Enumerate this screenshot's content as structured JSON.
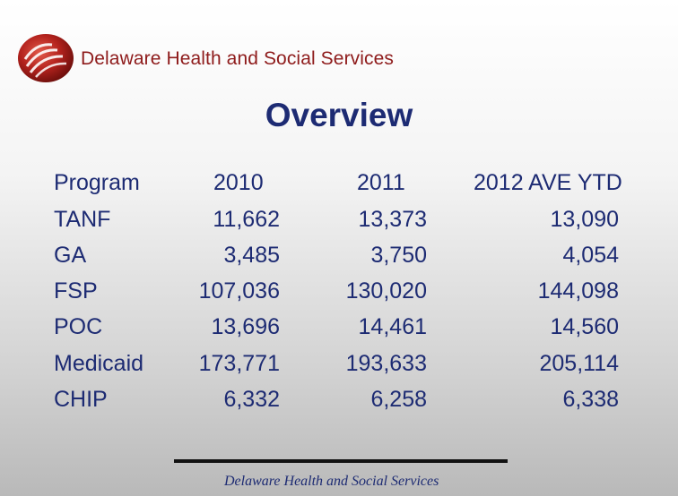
{
  "header": {
    "org_name": "Delaware Health and Social Services",
    "brand_color": "#8e1b1b"
  },
  "slide": {
    "title": "Overview",
    "text_color": "#1d2b73"
  },
  "table": {
    "headers": [
      "Program",
      "2010",
      "2011",
      "2012 AVE YTD"
    ],
    "rows": [
      [
        "TANF",
        "11,662",
        "13,373",
        "13,090"
      ],
      [
        "GA",
        "3,485",
        "3,750",
        "4,054"
      ],
      [
        "FSP",
        "107,036",
        "130,020",
        "144,098"
      ],
      [
        "POC",
        "13,696",
        "14,461",
        "14,560"
      ],
      [
        "Medicaid",
        "173,771",
        "193,633",
        "205,114"
      ],
      [
        "CHIP",
        "6,332",
        "6,258",
        "6,338"
      ]
    ]
  },
  "footer": {
    "text": "Delaware Health and Social Services"
  }
}
